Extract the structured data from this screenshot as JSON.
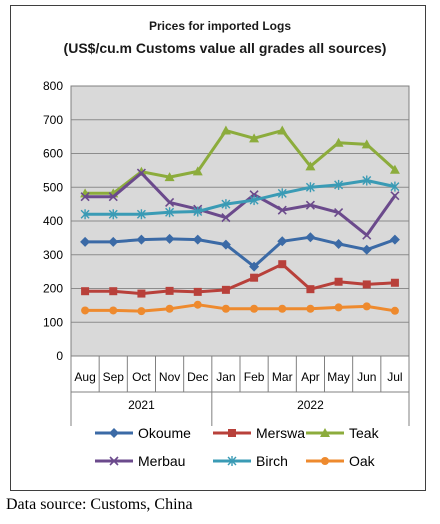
{
  "chart_data": {
    "type": "line",
    "title": "Prices for imported Logs",
    "subtitle": "(US$/cu.m Customs value all grades all sources)",
    "categories": [
      "Aug",
      "Sep",
      "Oct",
      "Nov",
      "Dec",
      "Jan",
      "Feb",
      "Mar",
      "Apr",
      "May",
      "Jun",
      "Jul"
    ],
    "year_groups": [
      {
        "label": "2021",
        "from": 0,
        "to": 4
      },
      {
        "label": "2022",
        "from": 5,
        "to": 11
      }
    ],
    "ylim": [
      0,
      800
    ],
    "yticks": [
      0,
      100,
      200,
      300,
      400,
      500,
      600,
      700,
      800
    ],
    "grid": true,
    "legend_position": "bottom",
    "series": [
      {
        "name": "Okoume",
        "color": "#3b6aa6",
        "marker": "diamond",
        "values": [
          338,
          338,
          345,
          347,
          345,
          330,
          265,
          340,
          352,
          332,
          315,
          345
        ]
      },
      {
        "name": "Merswa",
        "color": "#b8403a",
        "marker": "square",
        "values": [
          192,
          192,
          185,
          193,
          190,
          196,
          232,
          272,
          198,
          220,
          212,
          217
        ]
      },
      {
        "name": "Teak",
        "color": "#8cac3c",
        "marker": "triangle",
        "values": [
          482,
          482,
          546,
          530,
          547,
          668,
          645,
          668,
          562,
          632,
          627,
          552
        ]
      },
      {
        "name": "Merbau",
        "color": "#6b4a8c",
        "marker": "x",
        "values": [
          472,
          472,
          542,
          455,
          435,
          410,
          478,
          432,
          447,
          425,
          358,
          475
        ]
      },
      {
        "name": "Birch",
        "color": "#3a9bb5",
        "marker": "star",
        "values": [
          420,
          420,
          420,
          426,
          428,
          450,
          462,
          482,
          500,
          507,
          520,
          502
        ]
      },
      {
        "name": "Oak",
        "color": "#ee8a2e",
        "marker": "circle",
        "values": [
          135,
          135,
          133,
          140,
          152,
          140,
          140,
          140,
          140,
          144,
          147,
          134
        ]
      }
    ]
  },
  "source_note": "Data source: Customs, China"
}
